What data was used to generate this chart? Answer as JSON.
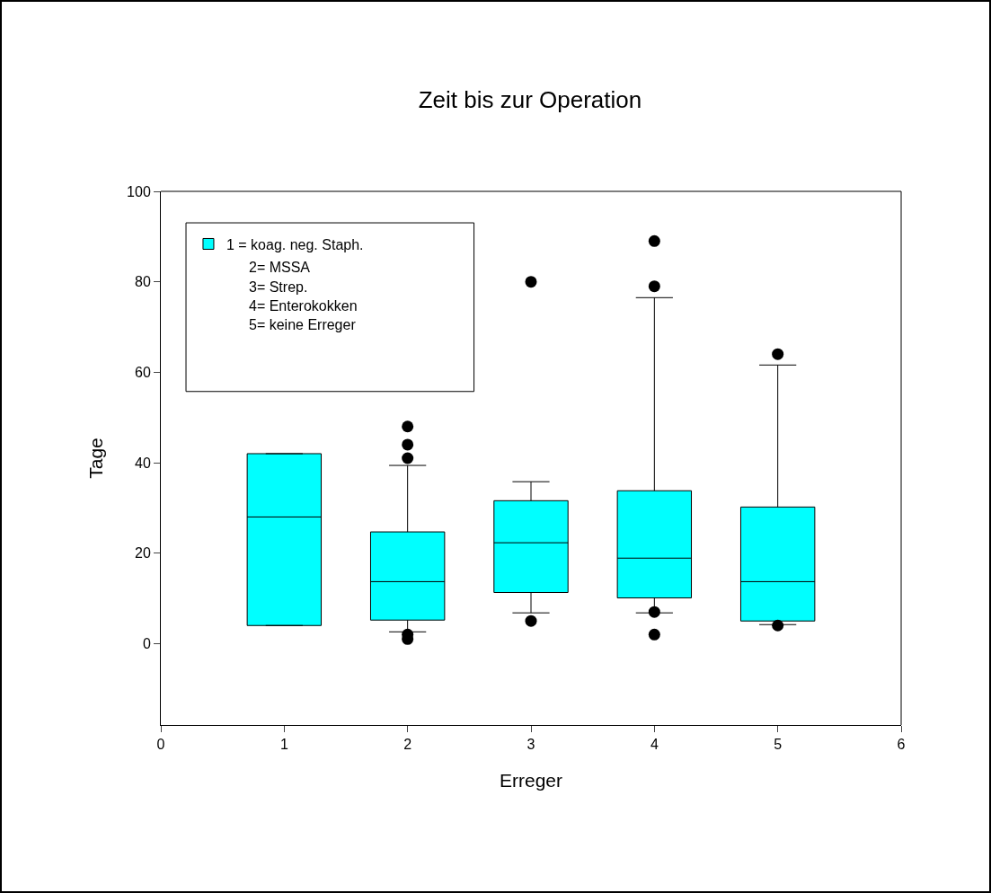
{
  "chart_data": {
    "type": "box",
    "title": "Zeit bis zur Operation",
    "xlabel": "Erreger",
    "ylabel": "Tage",
    "x": [
      1,
      2,
      3,
      4,
      5
    ],
    "xlim": [
      0,
      6
    ],
    "xticks": [
      0,
      1,
      2,
      3,
      4,
      5,
      6
    ],
    "ylim": [
      -18,
      100
    ],
    "yticks": [
      0,
      20,
      40,
      60,
      80,
      100
    ],
    "series": [
      {
        "name": "1 = koag. neg. Staph.",
        "color": "#00ffff",
        "boxes": [
          {
            "low": 4,
            "q1": 4,
            "median": 28,
            "q3": 42,
            "high": 42
          },
          {
            "low": 2.6,
            "q1": 5.2,
            "median": 13.7,
            "q3": 24.7,
            "high": 39.4,
            "outliers": [
              48,
              44,
              41,
              2,
              1
            ]
          },
          {
            "low": 6.8,
            "q1": 11.3,
            "median": 22.3,
            "q3": 31.6,
            "high": 35.8,
            "outliers": [
              80,
              5
            ]
          },
          {
            "low": 6.8,
            "q1": 10.1,
            "median": 18.9,
            "q3": 33.8,
            "high": 76.5,
            "outliers": [
              89,
              79,
              7,
              2
            ]
          },
          {
            "low": 4.2,
            "q1": 5,
            "median": 13.7,
            "q3": 30.2,
            "high": 61.6,
            "outliers": [
              64,
              4
            ]
          }
        ]
      }
    ],
    "annotations": [
      "2= MSSA",
      "3= Strep.",
      "4= Enterokokken",
      "5= keine Erreger"
    ],
    "legend": "top left",
    "grid": false,
    "marker": "circle"
  }
}
